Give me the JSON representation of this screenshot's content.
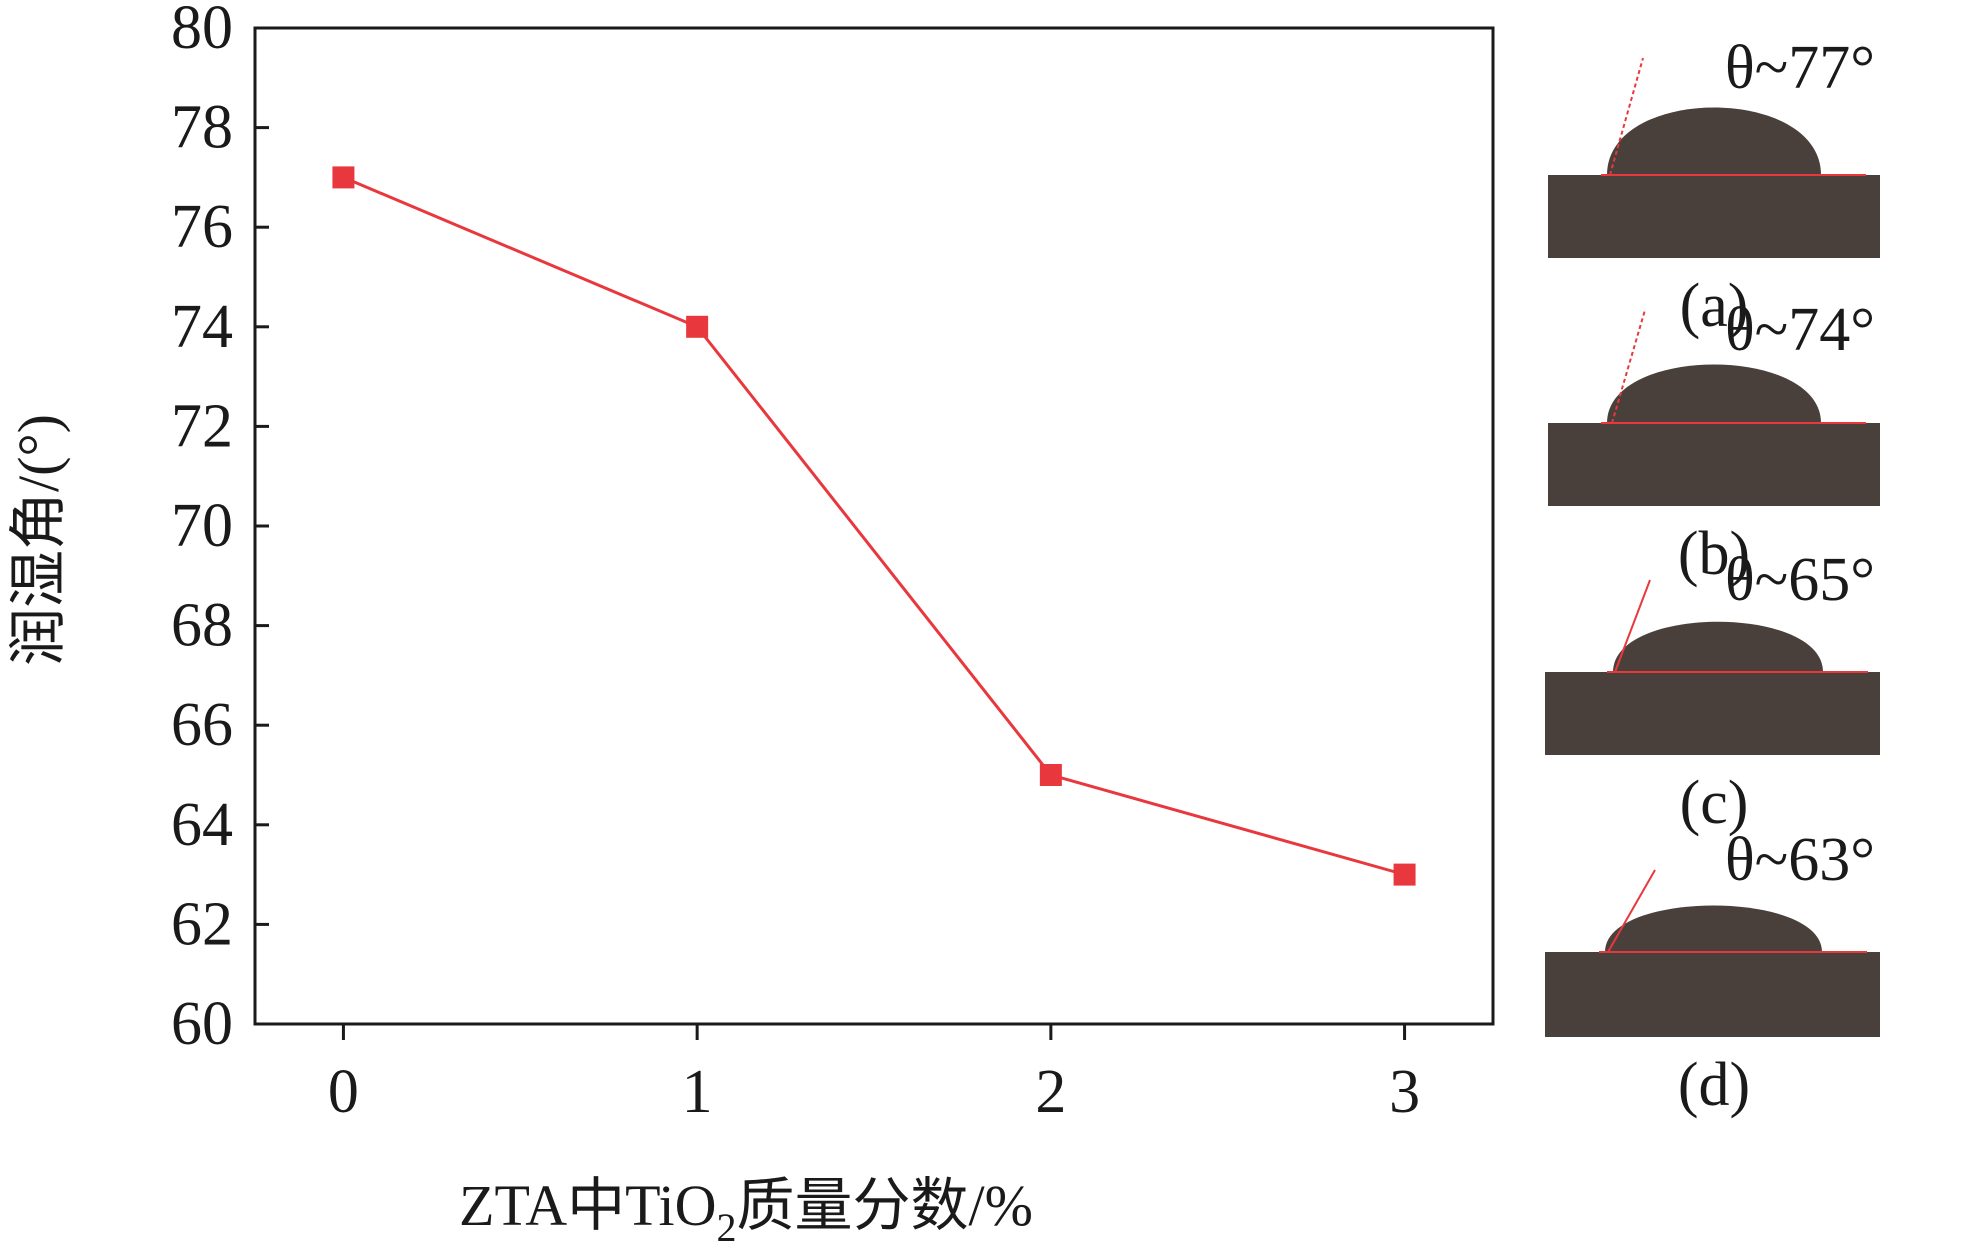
{
  "chart_data": {
    "type": "line",
    "x": [
      0,
      1,
      2,
      3
    ],
    "series": [
      {
        "values": [
          77,
          74,
          65,
          63
        ]
      }
    ],
    "xticks": [
      "0",
      "1",
      "2",
      "3"
    ],
    "yticks": [
      "60",
      "62",
      "64",
      "66",
      "68",
      "70",
      "72",
      "74",
      "76",
      "78",
      "80"
    ],
    "xlabel_main": "ZTA中TiO",
    "xlabel_sub": "2",
    "xlabel_rest": "质量分数/%",
    "ylabel": "润湿角/(°)",
    "xlim": [
      -0.25,
      3.25
    ],
    "ylim": [
      60,
      80
    ],
    "grid": false,
    "line_color": "#e8383d",
    "marker": "square"
  },
  "droplets": [
    {
      "angle_label": "θ~77°",
      "panel_label": "(a)"
    },
    {
      "angle_label": "θ~74°",
      "panel_label": "(b)"
    },
    {
      "angle_label": "θ~65°",
      "panel_label": "(c)"
    },
    {
      "angle_label": "θ~63°",
      "panel_label": "(d)"
    }
  ],
  "colors": {
    "axis": "#1a1a1a",
    "text": "#1a1a1a",
    "substrate": "#4a403b",
    "droplet": "#4a403b",
    "tangent": "#e8383d"
  }
}
